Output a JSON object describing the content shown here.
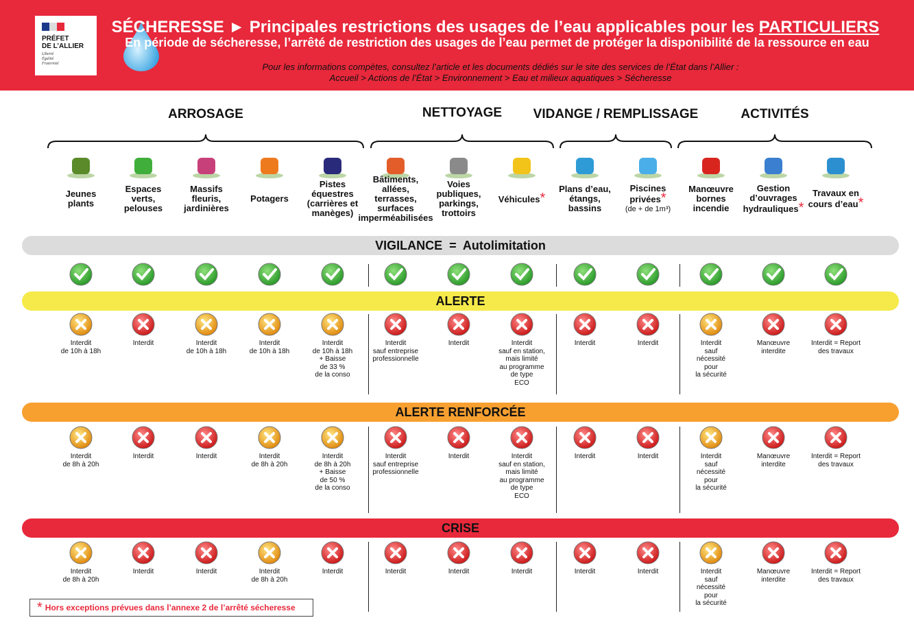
{
  "header": {
    "logo": {
      "prefect": "PRÉFET\nDE L’ALLIER",
      "motto": "Liberté\nÉgalité\nFraternité"
    },
    "title": "SÉCHERESSE ► Principales restrictions des usages de l’eau applicables pour les ",
    "title_emphasis": "PARTICULIERS",
    "subtitle": "En période de sécheresse, l’arrêté de restriction des usages de l’eau permet de protéger la disponibilité de la ressource en eau",
    "info": "Pour les informations compètes, consultez l’article et les documents dédiés sur le site des services de l’État dans l’Allier :",
    "breadcrumb": "Accueil > Actions de l’État > Environnement > Eau et milieux aquatiques > Sécheresse"
  },
  "groups": [
    {
      "title": "ARROSAGE",
      "columns": [
        {
          "label": "Jeunes\nplants"
        },
        {
          "label": "Espaces\nverts,\npelouses"
        },
        {
          "label": "Massifs\nfleuris,\njardinières"
        },
        {
          "label": "Potagers"
        },
        {
          "label": "Pistes\néquestres\n(carrières et\nmanèges)"
        }
      ]
    },
    {
      "title": "NETTOYAGE",
      "columns": [
        {
          "label": "Bâtiments,\nallées,\nterrasses,\nsurfaces\nimperméabilisées"
        },
        {
          "label": "Voies\npubliques,\nparkings,\ntrottoirs"
        },
        {
          "label": "Véhicules",
          "flagged": true
        }
      ]
    },
    {
      "title": "VIDANGE / REMPLISSAGE",
      "columns": [
        {
          "label": "Plans d’eau,\nétangs,\nbassins"
        },
        {
          "label": "Piscines\nprivées",
          "flagged": true,
          "note": "(de + de 1m³)"
        }
      ]
    },
    {
      "title": "ACTIVITÉS",
      "columns": [
        {
          "label": "Manœuvre\nbornes\nincendie"
        },
        {
          "label": "Gestion\nd’ouvrages\nhydrauliques",
          "flagged": true
        },
        {
          "label": "Travaux en\ncours d’eau",
          "flagged": true
        }
      ]
    }
  ],
  "levels": [
    {
      "name": "VIGILANCE  =  Autolimitation",
      "color": "#dcdcdc",
      "cells": [
        {
          "status": "ok"
        },
        {
          "status": "ok"
        },
        {
          "status": "ok"
        },
        {
          "status": "ok"
        },
        {
          "status": "ok"
        },
        {
          "status": "ok"
        },
        {
          "status": "ok"
        },
        {
          "status": "ok"
        },
        {
          "status": "ok"
        },
        {
          "status": "ok"
        },
        {
          "status": "ok"
        },
        {
          "status": "ok"
        },
        {
          "status": "ok"
        }
      ]
    },
    {
      "name": "ALERTE",
      "color": "#f5ea4a",
      "cells": [
        {
          "status": "partial",
          "text": "Interdit\nde 10h à 18h"
        },
        {
          "status": "forbidden",
          "text": "Interdit"
        },
        {
          "status": "partial",
          "text": "Interdit\nde 10h à 18h"
        },
        {
          "status": "partial",
          "text": "Interdit\nde 10h à 18h"
        },
        {
          "status": "partial",
          "text": "Interdit\nde 10h à 18h\n+ Baisse\nde 33 %\nde la conso"
        },
        {
          "status": "forbidden",
          "text": "Interdit\nsauf entreprise\nprofessionnelle"
        },
        {
          "status": "forbidden",
          "text": "Interdit"
        },
        {
          "status": "forbidden",
          "text": "Interdit\nsauf en station,\nmais limité\nau programme\nde type\nECO"
        },
        {
          "status": "forbidden",
          "text": "Interdit"
        },
        {
          "status": "forbidden",
          "text": "Interdit"
        },
        {
          "status": "partial",
          "text": "Interdit\nsauf\nnécessité\npour\nla sécurité"
        },
        {
          "status": "forbidden",
          "text": "Manœuvre\ninterdite"
        },
        {
          "status": "forbidden",
          "text": "Interdit = Report\ndes travaux"
        }
      ]
    },
    {
      "name": "ALERTE RENFORCÉE",
      "color": "#f7a030",
      "cells": [
        {
          "status": "partial",
          "text": "Interdit\nde 8h à 20h"
        },
        {
          "status": "forbidden",
          "text": "Interdit"
        },
        {
          "status": "forbidden",
          "text": "Interdit"
        },
        {
          "status": "partial",
          "text": "Interdit\nde 8h à 20h"
        },
        {
          "status": "partial",
          "text": "Interdit\nde 8h à 20h\n+ Baisse\nde 50 %\nde la conso"
        },
        {
          "status": "forbidden",
          "text": "Interdit\nsauf entreprise\nprofessionnelle"
        },
        {
          "status": "forbidden",
          "text": "Interdit"
        },
        {
          "status": "forbidden",
          "text": "Interdit\nsauf en station,\nmais limité\nau programme\nde type\nECO"
        },
        {
          "status": "forbidden",
          "text": "Interdit"
        },
        {
          "status": "forbidden",
          "text": "Interdit"
        },
        {
          "status": "partial",
          "text": "Interdit\nsauf\nnécessité\npour\nla sécurité"
        },
        {
          "status": "forbidden",
          "text": "Manœuvre\ninterdite"
        },
        {
          "status": "forbidden",
          "text": "Interdit = Report\ndes travaux"
        }
      ]
    },
    {
      "name": "CRISE",
      "color": "#e8283b",
      "cells": [
        {
          "status": "partial",
          "text": "Interdit\nde 8h à 20h"
        },
        {
          "status": "forbidden",
          "text": "Interdit"
        },
        {
          "status": "forbidden",
          "text": "Interdit"
        },
        {
          "status": "partial",
          "text": "Interdit\nde 8h à 20h"
        },
        {
          "status": "forbidden",
          "text": "Interdit"
        },
        {
          "status": "forbidden",
          "text": "Interdit"
        },
        {
          "status": "forbidden",
          "text": "Interdit"
        },
        {
          "status": "forbidden",
          "text": "Interdit"
        },
        {
          "status": "forbidden",
          "text": "Interdit"
        },
        {
          "status": "forbidden",
          "text": "Interdit"
        },
        {
          "status": "partial",
          "text": "Interdit\nsauf\nnécessité\npour\nla sécurité"
        },
        {
          "status": "forbidden",
          "text": "Manœuvre\ninterdite"
        },
        {
          "status": "forbidden",
          "text": "Interdit = Report\ndes travaux"
        }
      ]
    }
  ],
  "footnote": {
    "mark": "*",
    "text": "Hors exceptions prévues dans l’annexe 2 de l’arrêté sécheresse"
  }
}
